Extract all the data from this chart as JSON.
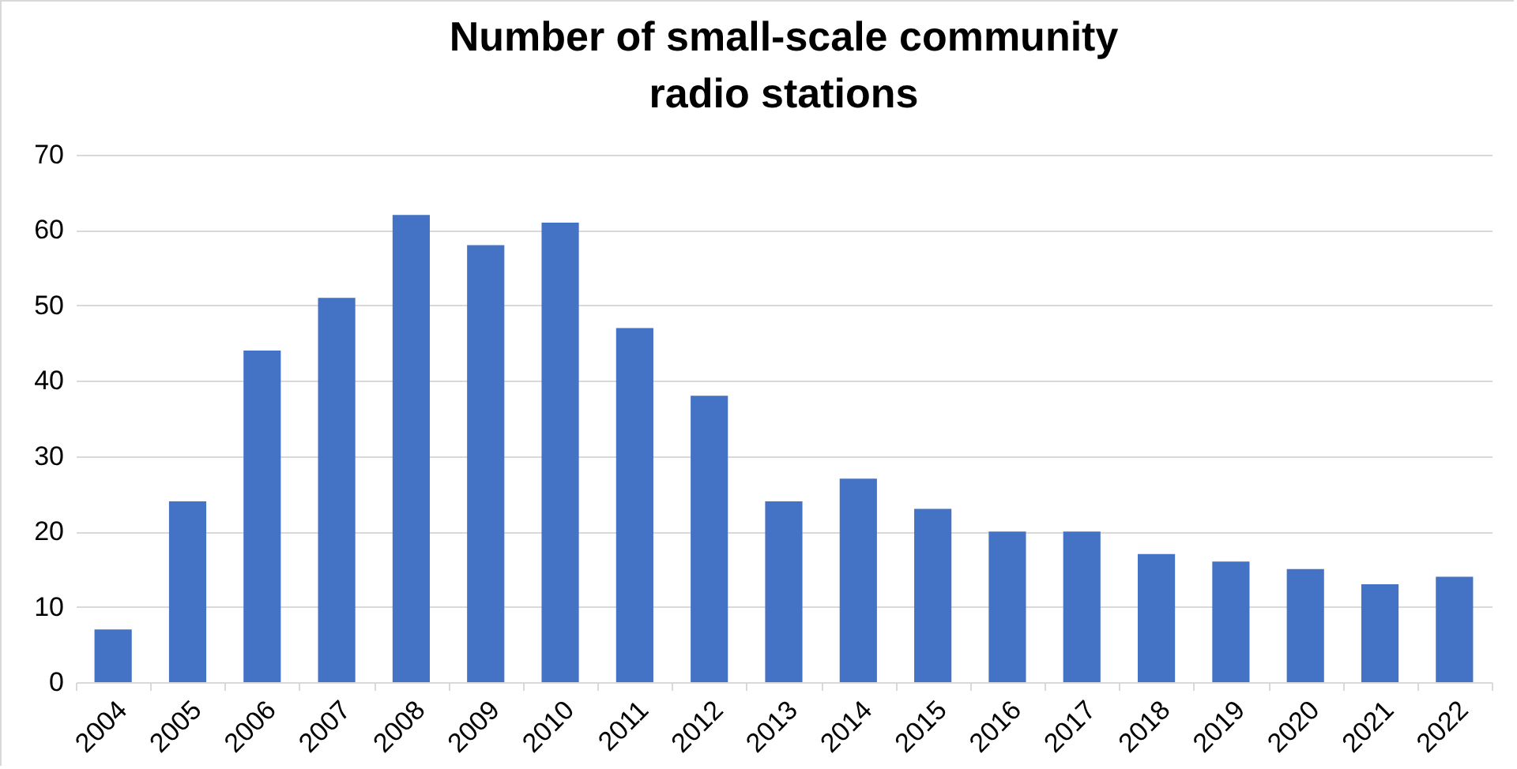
{
  "chart_data": {
    "type": "bar",
    "title": "Number of small-scale community radio stations",
    "categories": [
      "2004",
      "2005",
      "2006",
      "2007",
      "2008",
      "2009",
      "2010",
      "2011",
      "2012",
      "2013",
      "2014",
      "2015",
      "2016",
      "2017",
      "2018",
      "2019",
      "2020",
      "2021",
      "2022"
    ],
    "values": [
      7,
      24,
      44,
      51,
      62,
      58,
      61,
      47,
      38,
      24,
      27,
      23,
      20,
      20,
      17,
      16,
      15,
      13,
      14
    ],
    "color": "#4472c4",
    "ylim": [
      0,
      70
    ],
    "yticks": [
      0,
      10,
      20,
      30,
      40,
      50,
      60,
      70
    ],
    "grid": "y"
  }
}
